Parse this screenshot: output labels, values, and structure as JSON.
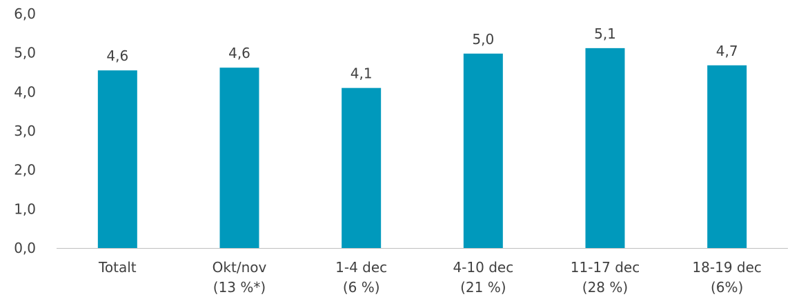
{
  "chart_data": {
    "type": "bar",
    "categories": [
      [
        "Totalt"
      ],
      [
        "Okt/nov",
        "(13 %*)"
      ],
      [
        "1-4 dec",
        "(6 %)"
      ],
      [
        "4-10 dec",
        "(21 %)"
      ],
      [
        "11-17 dec",
        "(28 %)"
      ],
      [
        "18-19 dec",
        "(6%)"
      ]
    ],
    "values": [
      4.55,
      4.62,
      4.1,
      4.98,
      5.12,
      4.68
    ],
    "data_labels": [
      "4,6",
      "4,6",
      "4,1",
      "5,0",
      "5,1",
      "4,7"
    ],
    "yticks": [
      0,
      1,
      2,
      3,
      4,
      5,
      6
    ],
    "ytick_labels": [
      "0,0",
      "1,0",
      "2,0",
      "3,0",
      "4,0",
      "5,0",
      "6,0"
    ],
    "ylim": [
      0,
      6
    ],
    "grid": false,
    "bar_color": "#0099BC",
    "axis_color": "#BFBFBF",
    "text_color": "#404040"
  }
}
